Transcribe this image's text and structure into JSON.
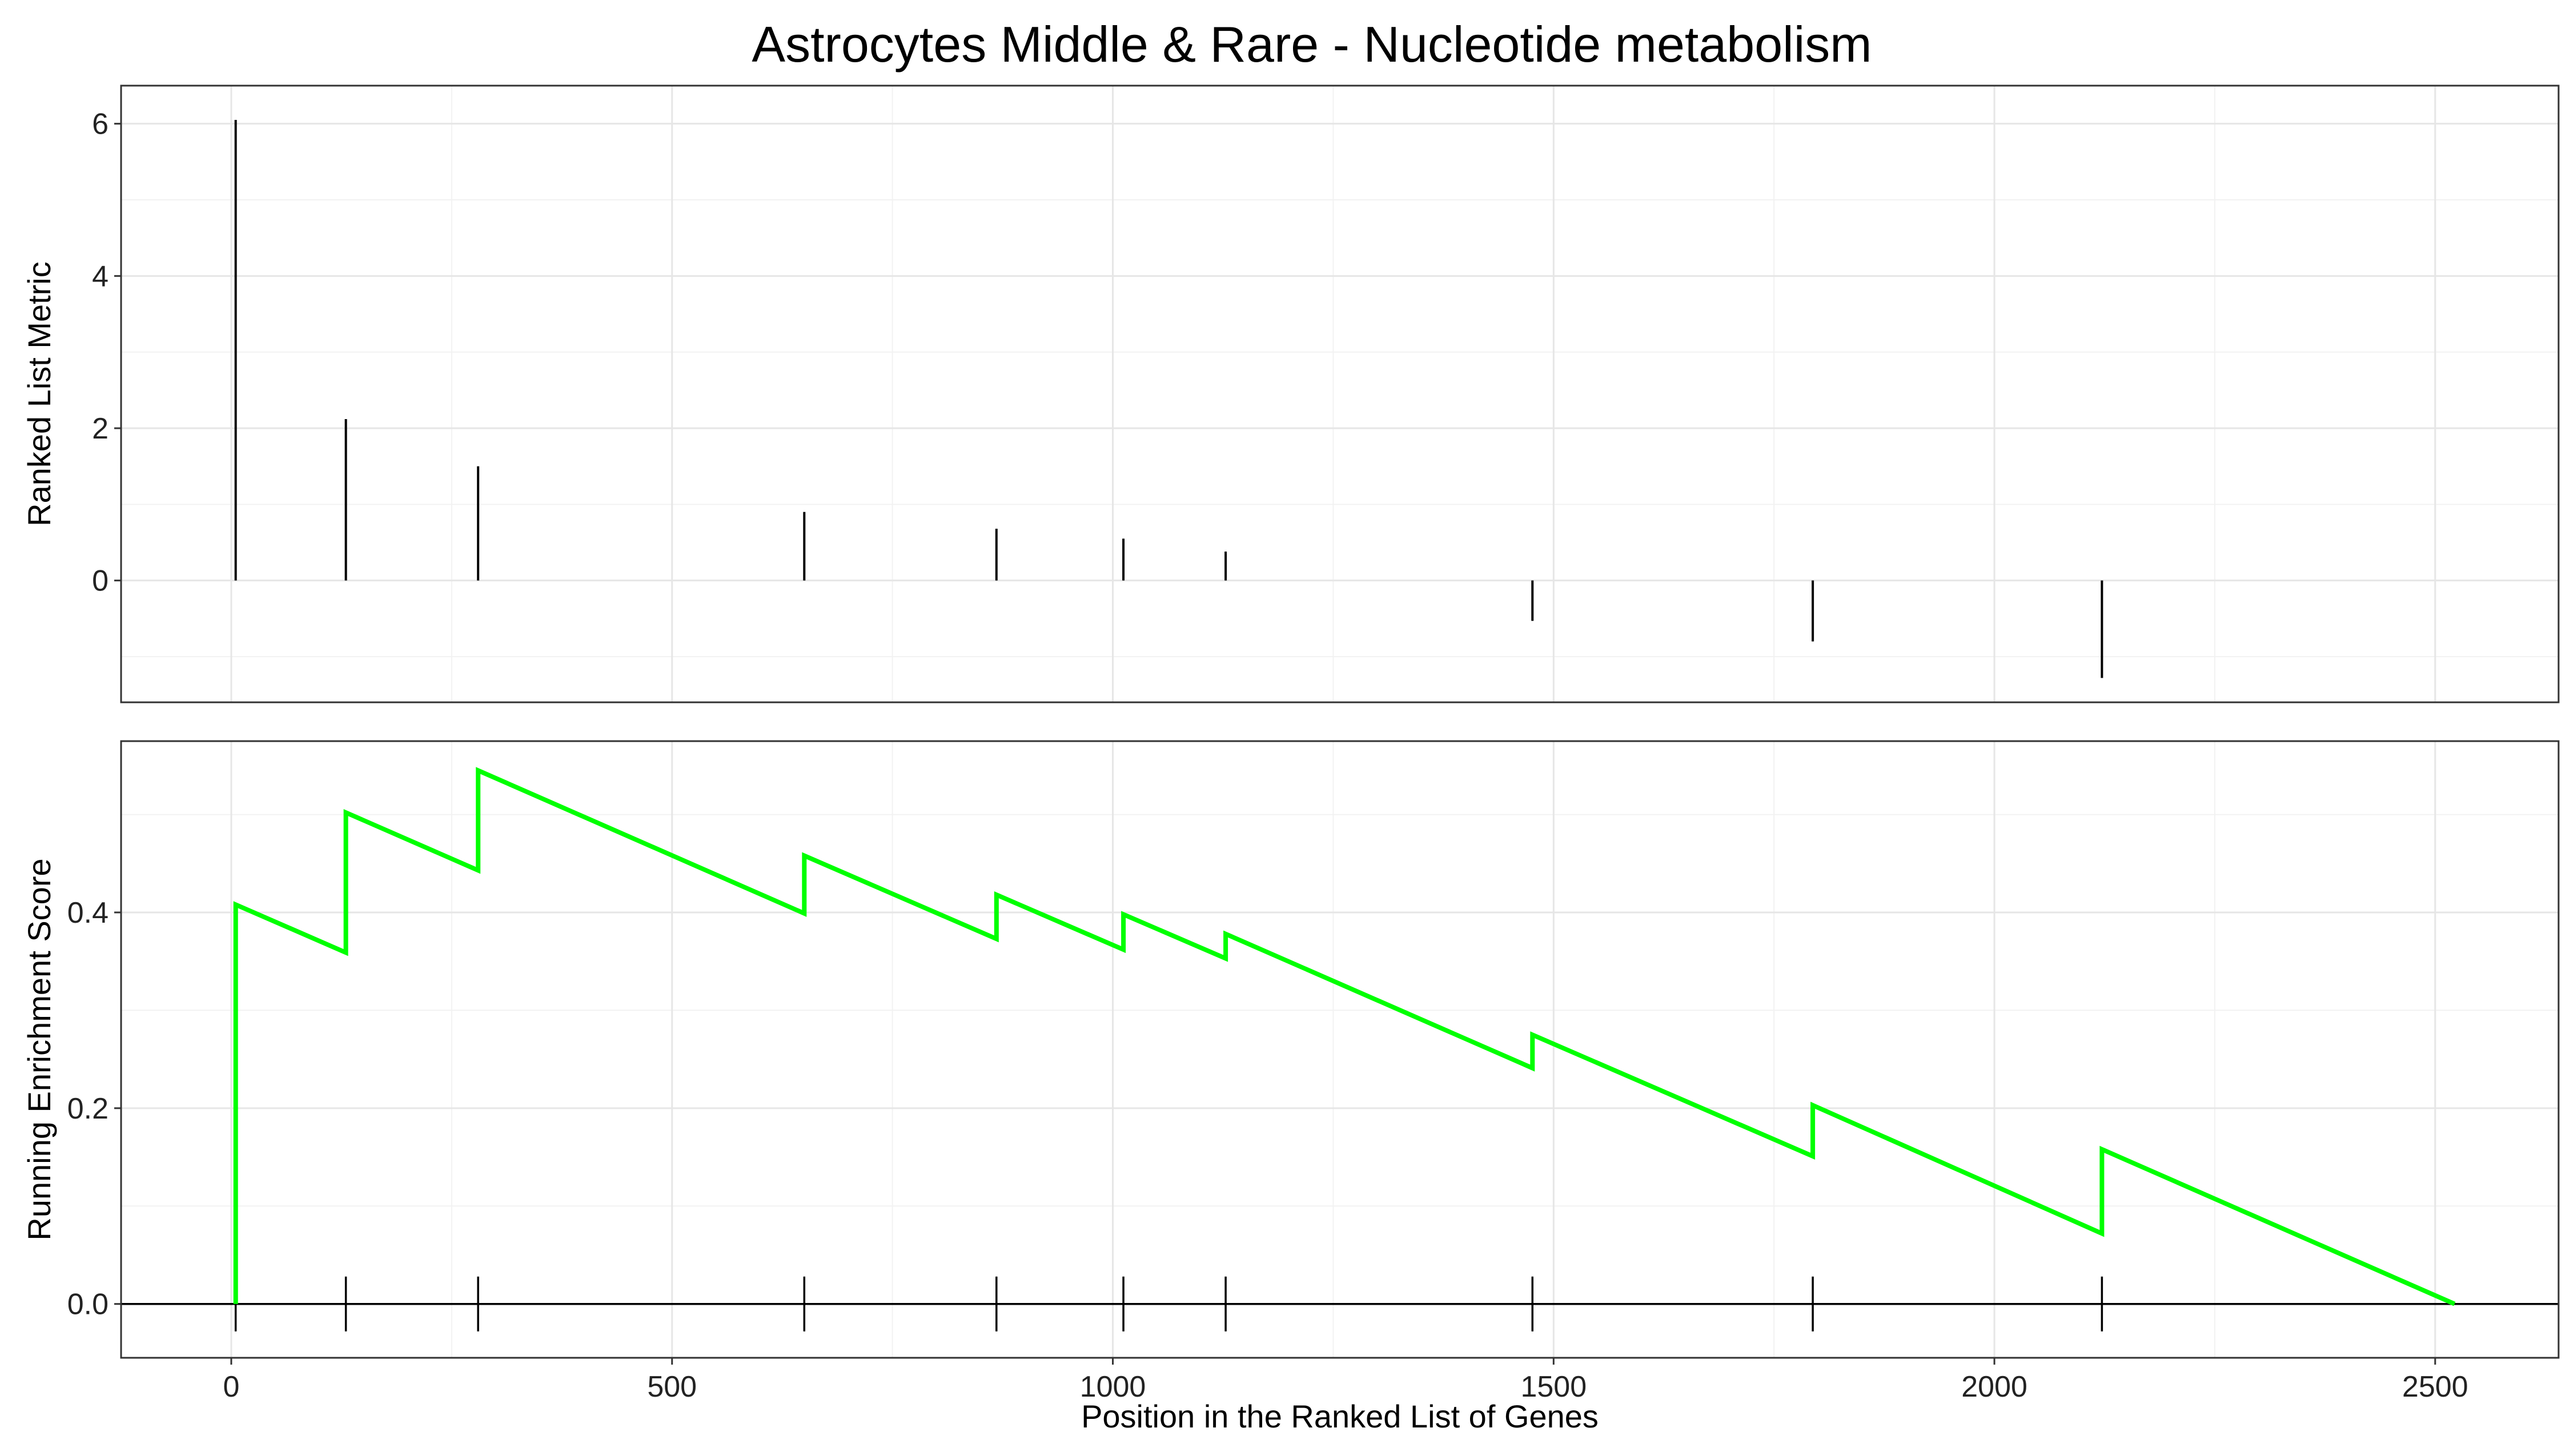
{
  "chart_data": [
    {
      "type": "bar",
      "panel": "ranked-list-metric",
      "title": "Astrocytes Middle & Rare - Nucleotide metabolism",
      "ylabel": "Ranked List Metric",
      "xlim": [
        -125,
        2640
      ],
      "ylim": [
        -1.6,
        6.5
      ],
      "yticks": [
        0,
        2,
        4,
        6
      ],
      "grid": true,
      "positions": [
        5,
        130,
        280,
        650,
        868,
        1012,
        1128,
        1476,
        1794,
        2122
      ],
      "values": [
        6.05,
        2.12,
        1.5,
        0.9,
        0.68,
        0.55,
        0.38,
        -0.53,
        -0.8,
        -1.28
      ]
    },
    {
      "type": "line",
      "panel": "running-enrichment-score",
      "xlabel": "Position in the Ranked List of Genes",
      "ylabel": "Running Enrichment Score",
      "xlim": [
        -125,
        2640
      ],
      "ylim": [
        -0.055,
        0.575
      ],
      "xticks": [
        0,
        500,
        1000,
        1500,
        2000,
        2500
      ],
      "yticks": [
        0.0,
        0.2,
        0.4
      ],
      "grid": true,
      "line_color": "#00ff00",
      "points": [
        [
          5,
          0.0
        ],
        [
          5,
          0.408
        ],
        [
          130,
          0.359
        ],
        [
          130,
          0.502
        ],
        [
          280,
          0.443
        ],
        [
          280,
          0.545
        ],
        [
          650,
          0.399
        ],
        [
          650,
          0.458
        ],
        [
          868,
          0.373
        ],
        [
          868,
          0.418
        ],
        [
          1012,
          0.362
        ],
        [
          1012,
          0.398
        ],
        [
          1128,
          0.353
        ],
        [
          1128,
          0.378
        ],
        [
          1476,
          0.241
        ],
        [
          1476,
          0.275
        ],
        [
          1794,
          0.151
        ],
        [
          1794,
          0.203
        ],
        [
          2122,
          0.072
        ],
        [
          2122,
          0.158
        ],
        [
          2522,
          0.0
        ]
      ],
      "hit_positions": [
        5,
        130,
        280,
        650,
        868,
        1012,
        1128,
        1476,
        1794,
        2122
      ],
      "baseline": 0.0
    }
  ]
}
